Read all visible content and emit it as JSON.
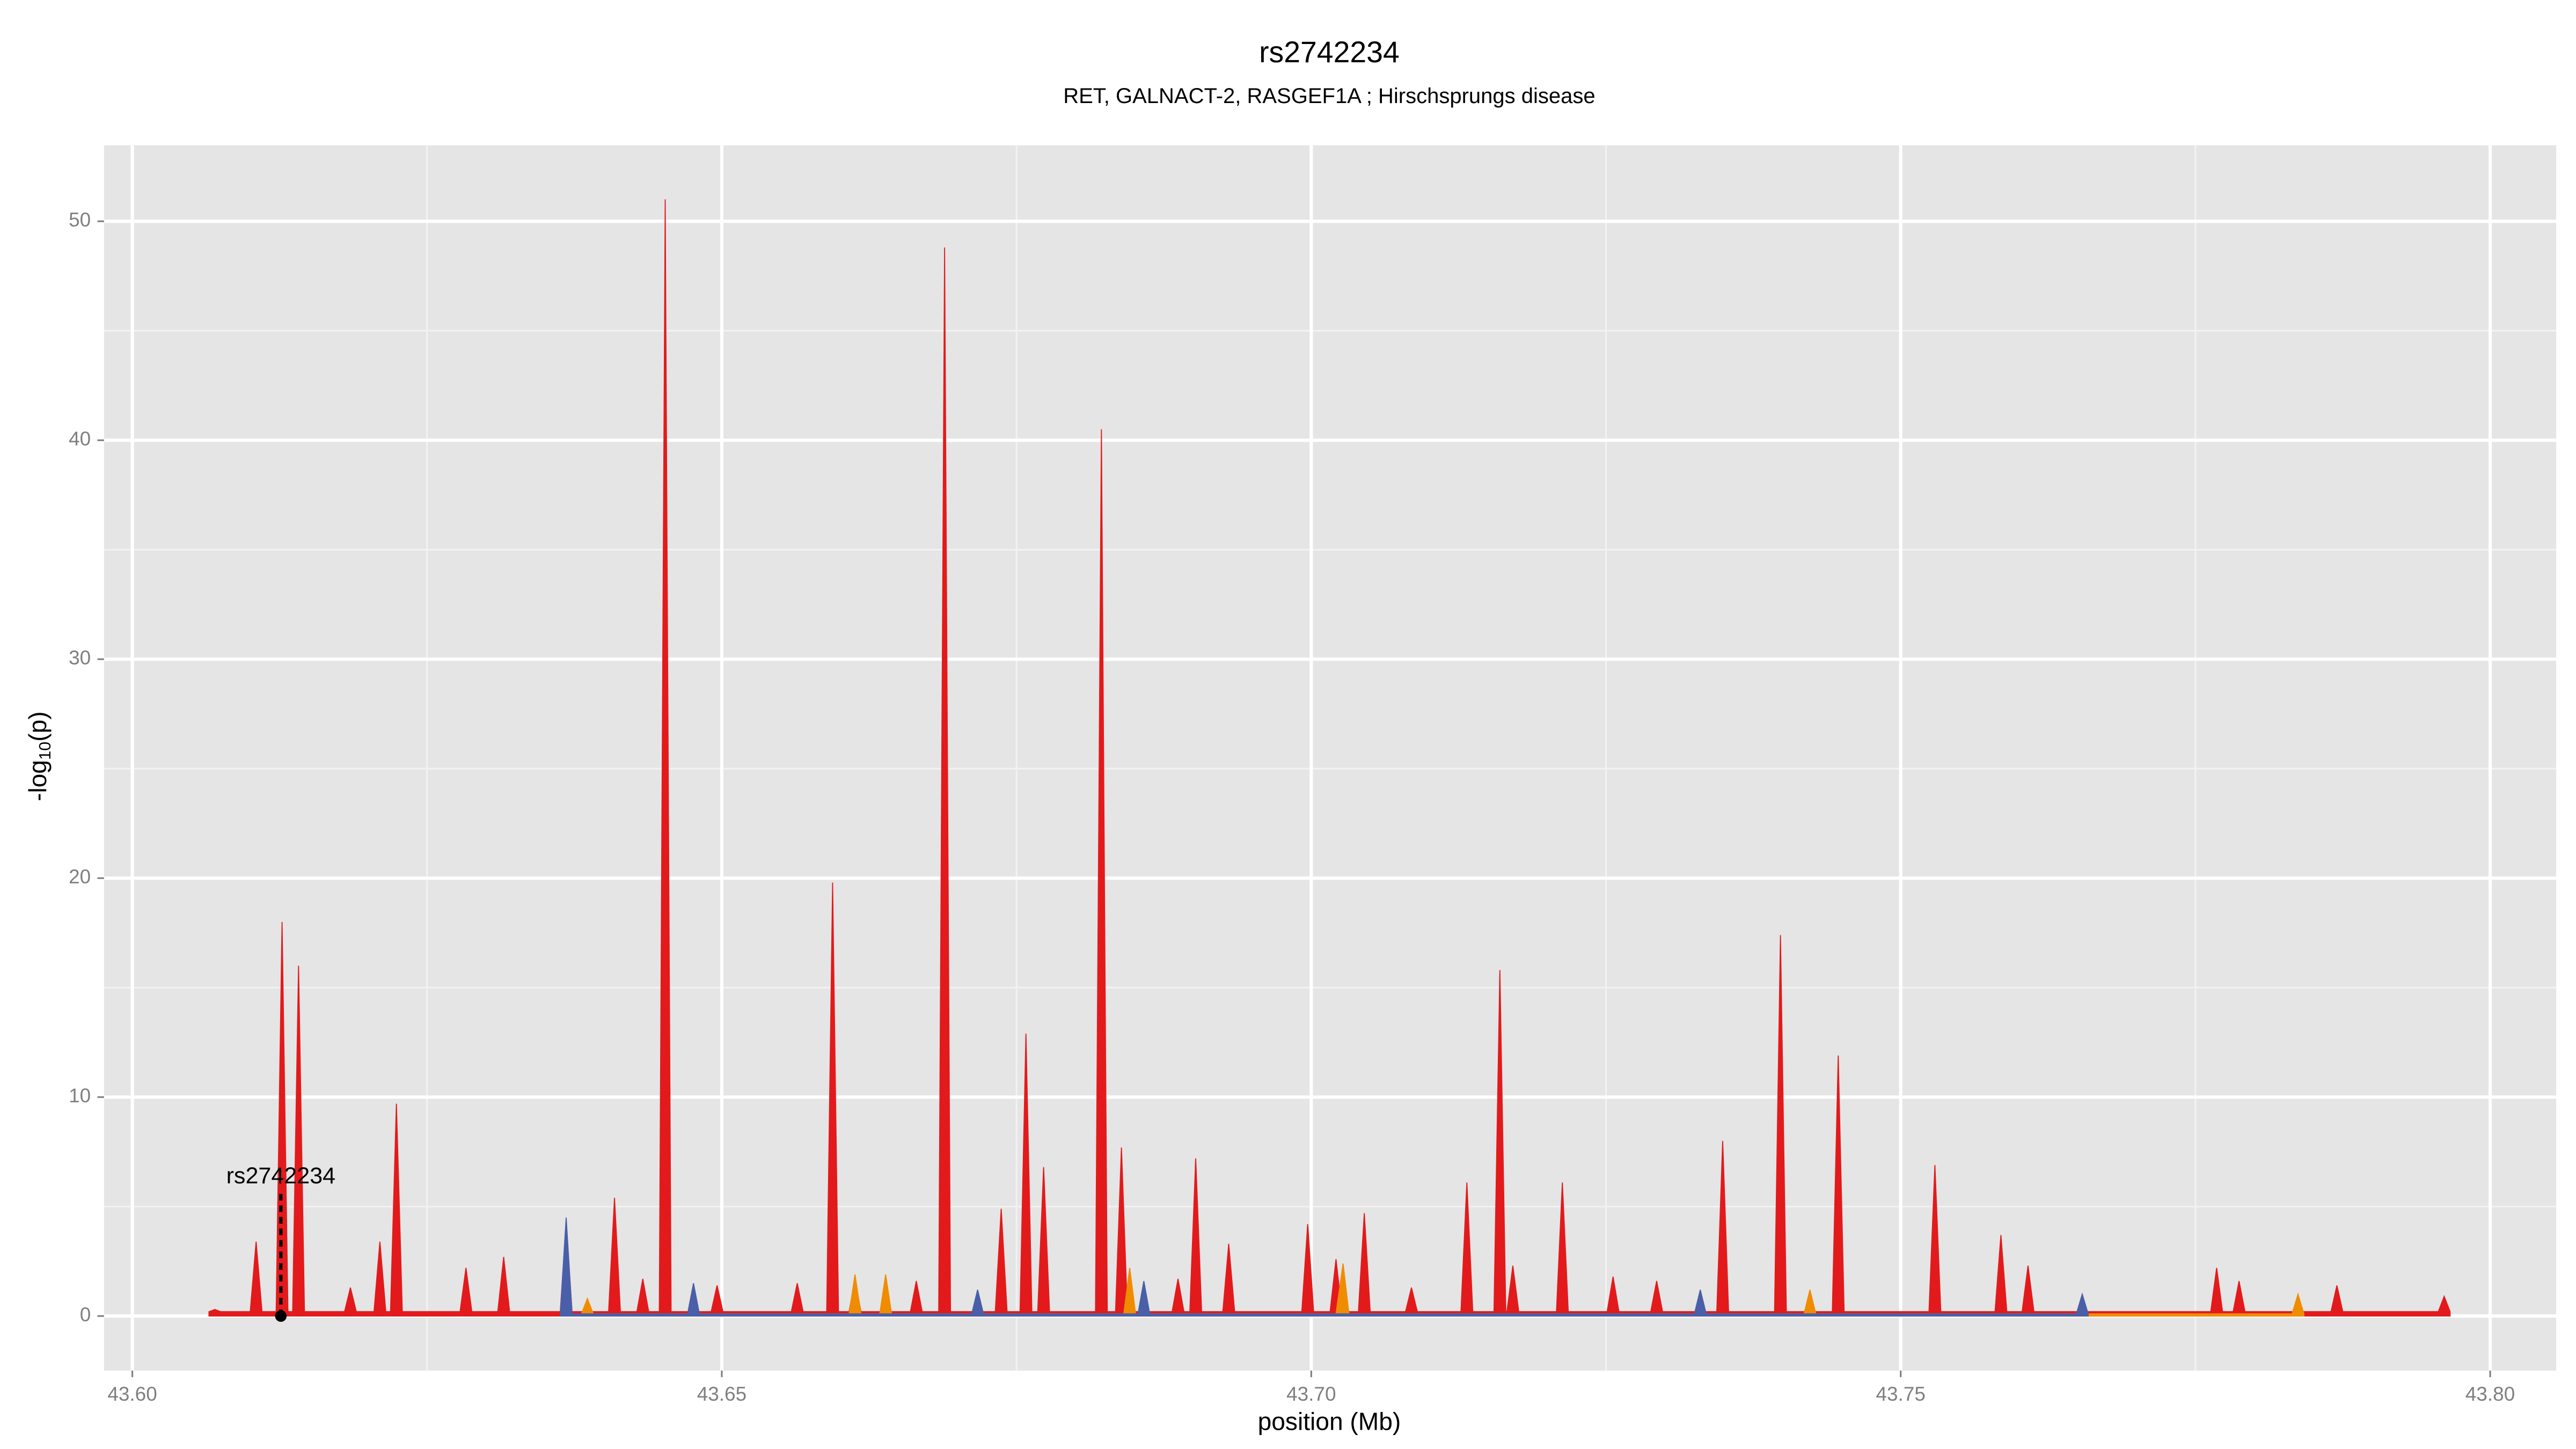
{
  "chart_data": {
    "type": "area",
    "title": "rs2742234",
    "subtitle": "RET, GALNACT-2, RASGEF1A ; Hirschsprungs disease",
    "xlabel": "position (Mb)",
    "ylabel": [
      "-log",
      "10",
      "(p)"
    ],
    "xlim": [
      43.5976,
      43.8056
    ],
    "ylim": [
      -2.49,
      53.47
    ],
    "xticks": [
      {
        "value": 43.6,
        "label": "43.60"
      },
      {
        "value": 43.65,
        "label": "43.65"
      },
      {
        "value": 43.7,
        "label": "43.70"
      },
      {
        "value": 43.75,
        "label": "43.75"
      },
      {
        "value": 43.8,
        "label": "43.80"
      }
    ],
    "yticks": [
      0,
      10,
      20,
      30,
      40,
      50
    ],
    "x_minor_ticks": [
      43.625,
      43.675,
      43.725,
      43.775
    ],
    "y_minor_ticks": [
      5,
      15,
      25,
      35,
      45
    ],
    "grid": true,
    "series": [
      {
        "color": "#e31a1c",
        "x": [
          43.6065,
          43.607,
          43.6075,
          43.61,
          43.6105,
          43.611,
          43.6122,
          43.6127,
          43.6132,
          43.6136,
          43.6141,
          43.6146,
          43.618,
          43.6185,
          43.619,
          43.6205,
          43.621,
          43.6215,
          43.6219,
          43.6224,
          43.6229,
          43.6278,
          43.6283,
          43.6288,
          43.631,
          43.6315,
          43.632,
          43.6363,
          43.6368,
          43.6373,
          43.6404,
          43.6409,
          43.6414,
          43.6428,
          43.6433,
          43.6438,
          43.6447,
          43.6452,
          43.6457,
          43.6491,
          43.6496,
          43.6501,
          43.6559,
          43.6564,
          43.6569,
          43.6589,
          43.6594,
          43.6599,
          43.6608,
          43.6613,
          43.6618,
          43.666,
          43.6665,
          43.667,
          43.6684,
          43.6689,
          43.6694,
          43.6732,
          43.6737,
          43.6742,
          43.6753,
          43.6758,
          43.6763,
          43.6768,
          43.6773,
          43.6778,
          43.6817,
          43.6822,
          43.6827,
          43.6834,
          43.6839,
          43.6844,
          43.6882,
          43.6887,
          43.6892,
          43.6897,
          43.6902,
          43.6907,
          43.6925,
          43.693,
          43.6935,
          43.6992,
          43.6997,
          43.7002,
          43.7016,
          43.7021,
          43.7026,
          43.704,
          43.7045,
          43.705,
          43.708,
          43.7085,
          43.709,
          43.7127,
          43.7132,
          43.7137,
          43.7155,
          43.716,
          43.7165,
          43.7166,
          43.7171,
          43.7176,
          43.7208,
          43.7213,
          43.7218,
          43.7251,
          43.7256,
          43.7261,
          43.7288,
          43.7293,
          43.7298,
          43.7344,
          43.7349,
          43.7354,
          43.7393,
          43.7398,
          43.7403,
          43.7442,
          43.7447,
          43.7452,
          43.7524,
          43.7529,
          43.7534,
          43.758,
          43.7585,
          43.759,
          43.7603,
          43.7608,
          43.7613,
          43.7763,
          43.7768,
          43.7773,
          43.7782,
          43.7787,
          43.7792,
          43.7865,
          43.787,
          43.7875,
          43.7956,
          43.7961,
          43.7966
        ],
        "values": [
          0.2,
          0.3,
          0.2,
          0.2,
          3.4,
          0.2,
          0.2,
          18,
          0.2,
          0.2,
          16,
          0.2,
          0.2,
          1.3,
          0.2,
          0.2,
          3.4,
          0.2,
          0.2,
          9.7,
          0.2,
          0.2,
          2.2,
          0.2,
          0.2,
          2.7,
          0.2,
          0.2,
          4.2,
          0.2,
          0.2,
          5.4,
          0.2,
          0.2,
          1.7,
          0.2,
          0.2,
          51,
          0.2,
          0.2,
          1.4,
          0.2,
          0.2,
          1.5,
          0.2,
          0.2,
          19.8,
          0.2,
          0.2,
          1.7,
          0.2,
          0.2,
          1.6,
          0.2,
          0.2,
          48.8,
          0.2,
          0.2,
          4.9,
          0.2,
          0.2,
          12.9,
          0.2,
          0.2,
          6.8,
          0.2,
          0.2,
          40.5,
          0.2,
          0.2,
          7.7,
          0.2,
          0.2,
          1.7,
          0.2,
          0.2,
          7.2,
          0.2,
          0.2,
          3.3,
          0.2,
          0.2,
          4.2,
          0.2,
          0.2,
          2.6,
          0.2,
          0.2,
          4.7,
          0.2,
          0.2,
          1.3,
          0.2,
          0.2,
          6.1,
          0.2,
          0.2,
          15.8,
          0.2,
          0.2,
          2.3,
          0.2,
          0.2,
          6.1,
          0.2,
          0.2,
          1.8,
          0.2,
          0.2,
          1.6,
          0.2,
          0.2,
          8.0,
          0.2,
          0.2,
          17.4,
          0.2,
          0.2,
          11.9,
          0.2,
          0.2,
          6.9,
          0.2,
          0.2,
          3.7,
          0.2,
          0.2,
          2.3,
          0.2,
          0.2,
          2.2,
          0.2,
          0.2,
          1.6,
          0.2,
          0.2,
          1.4,
          0.2,
          0.2,
          0.9,
          0.2
        ]
      },
      {
        "color": "#f08c00",
        "x": [
          43.6381,
          43.6386,
          43.6391,
          43.6608,
          43.6613,
          43.6618,
          43.6634,
          43.6639,
          43.6644,
          43.6841,
          43.6846,
          43.6851,
          43.7021,
          43.7027,
          43.7032,
          43.7418,
          43.7423,
          43.7428,
          43.7832,
          43.7837,
          43.7842
        ],
        "values": [
          0.1,
          0.8,
          0.1,
          0.1,
          1.9,
          0.1,
          0.1,
          1.9,
          0.1,
          0.1,
          2.2,
          0.1,
          0.1,
          2.4,
          0.1,
          0.1,
          1.2,
          0.1,
          0.1,
          1.0,
          0.1
        ]
      },
      {
        "color": "#4a5fa8",
        "x": [
          43.6363,
          43.6368,
          43.6373,
          43.6471,
          43.6476,
          43.6481,
          43.6712,
          43.6717,
          43.6722,
          43.6853,
          43.6858,
          43.6863,
          43.7325,
          43.733,
          43.7335,
          43.7649,
          43.7654,
          43.7659
        ],
        "values": [
          0.1,
          4.5,
          0.1,
          0.1,
          1.5,
          0.1,
          0.1,
          1.2,
          0.1,
          0.1,
          1.6,
          0.1,
          0.1,
          1.2,
          0.1,
          0.1,
          1.0,
          0.1
        ]
      }
    ],
    "annotation": {
      "label": "rs2742234",
      "x": 43.6126,
      "y": 0
    }
  }
}
